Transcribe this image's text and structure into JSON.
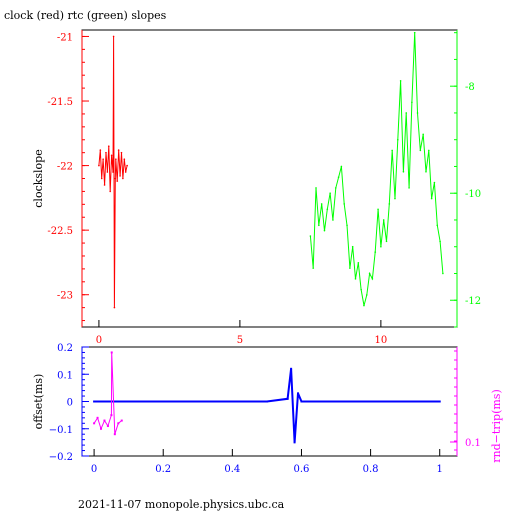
{
  "title": "clock (red) rtc (green) slopes",
  "footer": "2021-11-07  monopole.physics.ubc.ca",
  "colors": {
    "red": "#ff0000",
    "green": "#00ff00",
    "blue": "#0000ff",
    "magenta": "#ff00ff",
    "frame": "#000000"
  },
  "chart_data": [
    {
      "type": "line",
      "panel": "top",
      "ylabel": "clockslope",
      "x_ticks": [
        "0",
        "5",
        "10"
      ],
      "x_tick_values": [
        0,
        5,
        10
      ],
      "xlim": [
        -0.6,
        12.7
      ],
      "left_axis": {
        "ylim": [
          -23.25,
          -20.95
        ],
        "ticks": [
          "-21",
          "-21.5",
          "-22",
          "-22.5",
          "-23"
        ],
        "tick_values": [
          -21,
          -21.5,
          -22,
          -22.5,
          -23
        ],
        "color": "#ff0000"
      },
      "right_axis": {
        "ylim": [
          -12.5,
          -6.95
        ],
        "ticks": [
          "-8",
          "-10",
          "-12"
        ],
        "tick_values": [
          -8,
          -10,
          -12
        ],
        "color": "#00ff00"
      },
      "series": [
        {
          "color": "#ff0000",
          "axis": "left",
          "x": [
            0.0,
            0.05,
            0.1,
            0.15,
            0.2,
            0.25,
            0.3,
            0.35,
            0.4,
            0.45,
            0.5,
            0.52,
            0.55,
            0.58,
            0.6,
            0.65,
            0.7,
            0.75,
            0.8,
            0.85,
            0.9,
            0.95,
            1.0
          ],
          "y": [
            -22.0,
            -21.88,
            -22.1,
            -21.95,
            -22.15,
            -21.9,
            -22.05,
            -21.85,
            -22.2,
            -21.92,
            -22.05,
            -21.0,
            -23.1,
            -22.1,
            -21.95,
            -22.12,
            -21.88,
            -22.08,
            -21.9,
            -22.1,
            -21.95,
            -22.05,
            -22.0
          ]
        },
        {
          "color": "#00ff00",
          "axis": "right",
          "x": [
            7.5,
            7.6,
            7.7,
            7.8,
            7.9,
            8.0,
            8.1,
            8.2,
            8.3,
            8.4,
            8.5,
            8.6,
            8.7,
            8.8,
            8.9,
            9.0,
            9.1,
            9.2,
            9.3,
            9.4,
            9.5,
            9.6,
            9.7,
            9.8,
            9.9,
            10.0,
            10.1,
            10.2,
            10.3,
            10.4,
            10.5,
            10.6,
            10.7,
            10.8,
            10.9,
            11.0,
            11.1,
            11.2,
            11.3,
            11.4,
            11.5,
            11.6,
            11.7,
            11.8,
            11.9,
            12.0,
            12.1,
            12.2
          ],
          "y": [
            -10.8,
            -11.4,
            -9.9,
            -10.6,
            -10.2,
            -10.7,
            -10.3,
            -10.0,
            -10.5,
            -9.9,
            -9.7,
            -9.5,
            -10.2,
            -10.6,
            -11.4,
            -11.0,
            -11.6,
            -11.3,
            -11.8,
            -12.1,
            -11.9,
            -11.5,
            -11.6,
            -11.1,
            -10.3,
            -11.0,
            -10.5,
            -10.9,
            -10.2,
            -9.2,
            -10.1,
            -9.0,
            -7.9,
            -9.6,
            -8.5,
            -9.9,
            -8.3,
            -7.0,
            -8.5,
            -9.2,
            -8.9,
            -9.6,
            -9.2,
            -10.1,
            -9.8,
            -10.6,
            -10.9,
            -11.5
          ]
        }
      ]
    },
    {
      "type": "scatter",
      "panel": "bottom",
      "ylabel": "offset(ms)",
      "y2label": "rnd−trip(ms)",
      "x_ticks": [
        "0",
        "0.2",
        "0.4",
        "0.6",
        "0.8",
        "1"
      ],
      "x_tick_values": [
        0,
        0.2,
        0.4,
        0.6,
        0.8,
        1.0
      ],
      "xlim": [
        -0.035,
        1.05
      ],
      "left_axis": {
        "ylim": [
          -0.2,
          0.2
        ],
        "ticks": [
          "0.2",
          "0.1",
          "0",
          "−0.1",
          "−0.2"
        ],
        "tick_values": [
          0.2,
          0.1,
          0,
          -0.1,
          -0.2
        ],
        "color": "#0000ff"
      },
      "right_axis": {
        "ticks": [
          "0.1"
        ],
        "color": "#ff00ff"
      },
      "series": [
        {
          "color": "#0000ff",
          "axis": "left",
          "x": [
            0.0,
            0.1,
            0.2,
            0.3,
            0.4,
            0.5,
            0.56,
            0.57,
            0.58,
            0.59,
            0.6,
            0.7,
            0.8,
            0.9,
            1.0
          ],
          "y": [
            0.0,
            0.0,
            0.0,
            0.0,
            0.0,
            0.0,
            0.01,
            0.12,
            -0.15,
            0.03,
            0.0,
            0.0,
            0.0,
            0.0,
            0.0
          ]
        },
        {
          "color": "#ff00ff",
          "axis": "right",
          "x": [
            0.0,
            0.01,
            0.02,
            0.03,
            0.04,
            0.05,
            0.051,
            0.06,
            0.07,
            0.08
          ],
          "y": [
            -0.08,
            -0.06,
            -0.1,
            -0.07,
            -0.09,
            -0.05,
            0.18,
            -0.12,
            -0.08,
            -0.07
          ]
        }
      ]
    }
  ]
}
